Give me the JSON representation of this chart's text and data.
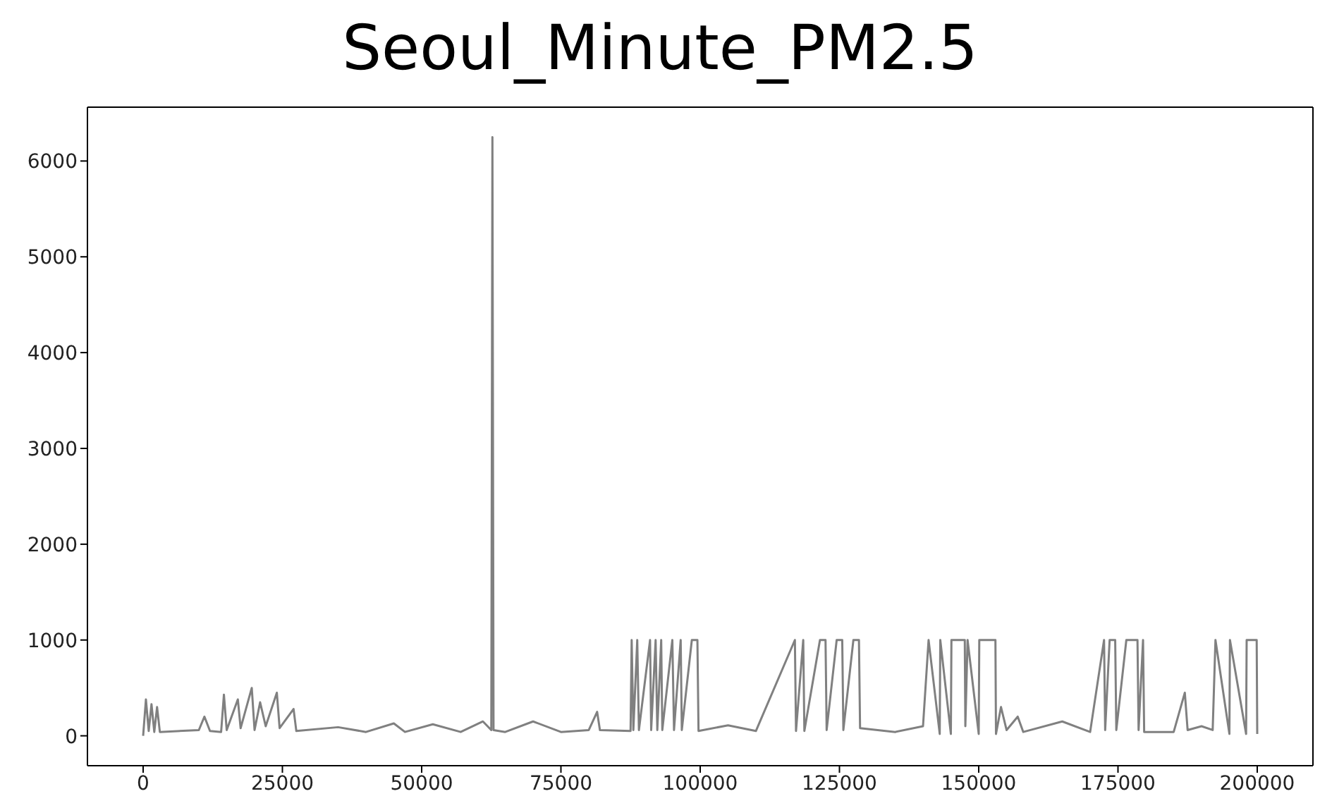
{
  "chart_data": {
    "type": "line",
    "title": "Seoul_Minute_PM2.5",
    "x": [
      0,
      500,
      1000,
      1500,
      2000,
      2500,
      3000,
      10000,
      11000,
      12000,
      14000,
      14500,
      15000,
      17000,
      17500,
      19500,
      20000,
      21000,
      22000,
      24000,
      24500,
      27000,
      27500,
      35000,
      40000,
      45000,
      47000,
      52000,
      57000,
      61000,
      62500,
      62700,
      62900,
      65000,
      70000,
      75000,
      80000,
      81500,
      82000,
      87500,
      87700,
      88000,
      88700,
      89000,
      91000,
      91200,
      92000,
      92300,
      93000,
      93200,
      95000,
      95300,
      96500,
      96700,
      98500,
      99500,
      99700,
      105000,
      110000,
      117000,
      117200,
      118500,
      118700,
      121500,
      122500,
      122700,
      124500,
      125500,
      125700,
      127500,
      128500,
      128700,
      135000,
      140000,
      141000,
      143000,
      143100,
      145000,
      145100,
      147500,
      147600,
      148000,
      150000,
      150100,
      153000,
      153100,
      154000,
      155000,
      157000,
      158000,
      165000,
      170000,
      172500,
      172700,
      173500,
      174500,
      174700,
      176500,
      177500,
      178500,
      178700,
      179500,
      179700,
      185000,
      187000,
      187500,
      190000,
      192000,
      192500,
      195000,
      195100,
      198000,
      198100,
      199900,
      200000
    ],
    "series": [
      {
        "color": "#808080",
        "values": [
          0,
          380,
          50,
          330,
          40,
          300,
          40,
          60,
          200,
          50,
          40,
          430,
          60,
          380,
          80,
          500,
          60,
          350,
          100,
          450,
          80,
          280,
          50,
          90,
          40,
          130,
          40,
          120,
          40,
          150,
          60,
          6250,
          60,
          40,
          150,
          40,
          60,
          250,
          60,
          50,
          1000,
          60,
          1000,
          60,
          1000,
          60,
          1000,
          60,
          1000,
          60,
          1000,
          60,
          1000,
          60,
          1000,
          1000,
          50,
          110,
          50,
          1000,
          50,
          1000,
          50,
          1000,
          1000,
          60,
          1000,
          1000,
          60,
          1000,
          1000,
          80,
          40,
          100,
          1000,
          20,
          1000,
          20,
          1000,
          1000,
          100,
          1000,
          20,
          1000,
          1000,
          20,
          300,
          60,
          200,
          40,
          150,
          40,
          1000,
          60,
          1000,
          1000,
          60,
          1000,
          1000,
          1000,
          60,
          1000,
          40,
          40,
          450,
          60,
          100,
          60,
          1000,
          20,
          1000,
          20,
          1000,
          1000,
          20
        ]
      }
    ],
    "xlim": [
      -10000,
      210000
    ],
    "xticks": [
      0,
      25000,
      50000,
      75000,
      100000,
      125000,
      150000,
      175000,
      200000
    ],
    "ylim": [
      -312,
      6562
    ],
    "yticks": [
      0,
      1000,
      2000,
      3000,
      4000,
      5000,
      6000
    ],
    "marker": "none",
    "line_style": "solid",
    "grid": false,
    "legend": false
  }
}
